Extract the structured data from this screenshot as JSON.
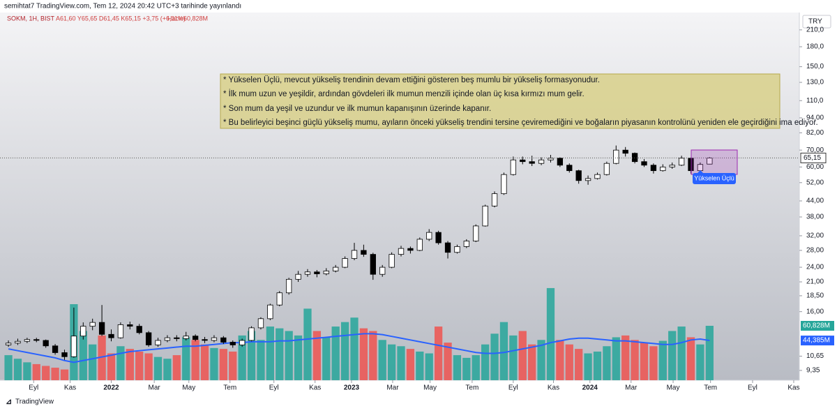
{
  "header": {
    "published": "semihtat7 TradingView.com, Tem 12, 2024 20:42 UTC+3 tarihinde yayınlandı",
    "symbol": "SOKM, 1H, BIST",
    "ohlc_text": "A61,60 Y65,65 D61,45 K65,15 +3,75 (+6,11%)",
    "volume_text": "Hacim",
    "currency": "TRY"
  },
  "footer": {
    "brand": "TradingView"
  },
  "annotation": {
    "lines": [
      "* Yükselen Üçlü, mevcut yükseliş trendinin devam ettiğini gösteren beş mumlu bir yükseliş formasyonudur.",
      "* İlk mum uzun ve yeşildir, ardından gövdeleri ilk mumun menzili içinde olan üç kısa kırmızı mum gelir.",
      "* Son mum da yeşil ve uzundur ve ilk mumun kapanışının üzerinde kapanır.",
      "* Bu belirleyici beşinci güçlü yükseliş mumu, ayıların önceki yükseliş trendini tersine çeviremediğini ve boğaların piyasanın kontrolünü yeniden ele geçirdiğini ima ediyor."
    ],
    "pattern_label": "Yükselen Üçlü"
  },
  "chart_data": {
    "type": "candlestick",
    "log_scale": true,
    "grid": false,
    "ylim": [
      8.55,
      246
    ],
    "xlim": [
      -0.9,
      84.6
    ],
    "y2lim": [
      0,
      411
    ],
    "up_color": "#ffffff",
    "down_color": "#000000",
    "yticks": [
      {
        "value": 9.35,
        "label": "9,35"
      },
      {
        "value": 10.65,
        "label": "10,65"
      },
      {
        "value": 16,
        "label": "16,00"
      },
      {
        "value": 18.5,
        "label": "18,50"
      },
      {
        "value": 21,
        "label": "21,00"
      },
      {
        "value": 24,
        "label": "24,00"
      },
      {
        "value": 28,
        "label": "28,00"
      },
      {
        "value": 32,
        "label": "32,00"
      },
      {
        "value": 38,
        "label": "38,00"
      },
      {
        "value": 44,
        "label": "44,00"
      },
      {
        "value": 52,
        "label": "52,00"
      },
      {
        "value": 60,
        "label": "60,00"
      },
      {
        "value": 70,
        "label": "70,00"
      },
      {
        "value": 82,
        "label": "82,00"
      },
      {
        "value": 94,
        "label": "94,00"
      },
      {
        "value": 110,
        "label": "110,0"
      },
      {
        "value": 130,
        "label": "130,0"
      },
      {
        "value": 150,
        "label": "150,0"
      },
      {
        "value": 180,
        "label": "180,0"
      },
      {
        "value": 210,
        "label": "210,0"
      }
    ],
    "xticks": [
      {
        "value": 2.7,
        "label": "Eyl"
      },
      {
        "value": 6.6,
        "label": "Kas"
      },
      {
        "value": 11.0,
        "label": "2022"
      },
      {
        "value": 15.6,
        "label": "Mar"
      },
      {
        "value": 19.3,
        "label": "May"
      },
      {
        "value": 23.7,
        "label": "Tem"
      },
      {
        "value": 28.4,
        "label": "Eyl"
      },
      {
        "value": 32.8,
        "label": "Kas"
      },
      {
        "value": 36.7,
        "label": "2023"
      },
      {
        "value": 41.1,
        "label": "Mar"
      },
      {
        "value": 45.1,
        "label": "May"
      },
      {
        "value": 49.6,
        "label": "Tem"
      },
      {
        "value": 54.0,
        "label": "Eyl"
      },
      {
        "value": 58.3,
        "label": "Kas"
      },
      {
        "value": 62.2,
        "label": "2024"
      },
      {
        "value": 66.6,
        "label": "Mar"
      },
      {
        "value": 71.1,
        "label": "May"
      },
      {
        "value": 75.1,
        "label": "Tem"
      },
      {
        "value": 79.6,
        "label": "Eyl"
      },
      {
        "value": 84.0,
        "label": "Kas"
      }
    ],
    "ohlc": [
      [
        11.8,
        12.3,
        11.6,
        12.0
      ],
      [
        12.0,
        12.5,
        11.8,
        12.2
      ],
      [
        12.2,
        12.6,
        12.0,
        12.4
      ],
      [
        12.4,
        12.6,
        12.1,
        12.3
      ],
      [
        12.3,
        12.4,
        11.5,
        11.7
      ],
      [
        11.7,
        11.9,
        10.8,
        11.0
      ],
      [
        11.0,
        11.3,
        10.3,
        10.6
      ],
      [
        10.6,
        16.6,
        10.5,
        12.8
      ],
      [
        12.8,
        14.5,
        12.4,
        14.0
      ],
      [
        14.0,
        15.0,
        13.5,
        14.5
      ],
      [
        14.5,
        17.0,
        12.8,
        13.0
      ],
      [
        13.0,
        13.6,
        12.2,
        12.6
      ],
      [
        12.6,
        14.5,
        12.5,
        14.2
      ],
      [
        14.2,
        14.6,
        13.6,
        14.0
      ],
      [
        14.0,
        14.3,
        13.0,
        13.2
      ],
      [
        13.2,
        13.4,
        11.6,
        11.8
      ],
      [
        11.8,
        12.6,
        11.6,
        12.3
      ],
      [
        12.3,
        12.9,
        12.1,
        12.6
      ],
      [
        12.6,
        12.9,
        12.2,
        12.5
      ],
      [
        12.5,
        13.3,
        12.3,
        12.8
      ],
      [
        12.8,
        13.0,
        12.2,
        12.4
      ],
      [
        12.4,
        12.7,
        12.0,
        12.3
      ],
      [
        12.3,
        12.9,
        12.1,
        12.6
      ],
      [
        12.6,
        12.8,
        11.9,
        12.1
      ],
      [
        12.1,
        12.3,
        11.5,
        11.8
      ],
      [
        11.8,
        12.5,
        11.6,
        12.3
      ],
      [
        12.3,
        14.0,
        12.2,
        13.8
      ],
      [
        13.8,
        15.2,
        13.6,
        15.0
      ],
      [
        15.0,
        17.2,
        14.8,
        17.0
      ],
      [
        17.0,
        19.3,
        16.8,
        19.0
      ],
      [
        19.0,
        21.8,
        18.7,
        21.5
      ],
      [
        21.5,
        23.2,
        21.0,
        22.5
      ],
      [
        22.5,
        23.6,
        22.0,
        23.0
      ],
      [
        23.0,
        23.4,
        21.9,
        22.6
      ],
      [
        22.6,
        23.8,
        22.3,
        23.2
      ],
      [
        23.2,
        24.5,
        22.9,
        24.0
      ],
      [
        24.0,
        26.5,
        23.8,
        26.0
      ],
      [
        26.0,
        30.0,
        25.6,
        28.0
      ],
      [
        28.0,
        29.5,
        26.4,
        27.0
      ],
      [
        27.0,
        27.4,
        21.4,
        22.5
      ],
      [
        22.5,
        24.5,
        22.0,
        24.0
      ],
      [
        24.0,
        27.5,
        23.8,
        27.0
      ],
      [
        27.0,
        29.2,
        26.5,
        28.5
      ],
      [
        28.5,
        29.0,
        27.2,
        28.0
      ],
      [
        28.0,
        31.5,
        27.8,
        31.0
      ],
      [
        31.0,
        34.0,
        30.5,
        33.0
      ],
      [
        33.0,
        33.5,
        29.5,
        30.0
      ],
      [
        30.0,
        30.5,
        26.0,
        27.5
      ],
      [
        27.5,
        29.5,
        27.2,
        29.0
      ],
      [
        29.0,
        31.0,
        28.6,
        30.5
      ],
      [
        30.5,
        35.5,
        30.2,
        35.0
      ],
      [
        35.0,
        42.5,
        34.8,
        42.0
      ],
      [
        42.0,
        48.0,
        41.5,
        47.0
      ],
      [
        47.0,
        57.0,
        46.5,
        56.0
      ],
      [
        56.0,
        66.0,
        55.5,
        64.0
      ],
      [
        64.0,
        66.0,
        61.5,
        63.0
      ],
      [
        63.0,
        66.5,
        60.5,
        62.0
      ],
      [
        62.0,
        65.5,
        61.0,
        64.0
      ],
      [
        64.0,
        67.0,
        62.5,
        65.0
      ],
      [
        65.0,
        65.5,
        60.0,
        61.0
      ],
      [
        61.0,
        62.0,
        57.0,
        58.0
      ],
      [
        58.0,
        58.5,
        51.5,
        53.0
      ],
      [
        53.0,
        55.5,
        51.0,
        54.0
      ],
      [
        54.0,
        57.0,
        53.5,
        56.0
      ],
      [
        56.0,
        63.0,
        55.5,
        62.0
      ],
      [
        62.0,
        73.0,
        61.5,
        70.0
      ],
      [
        70.0,
        72.0,
        66.0,
        68.0
      ],
      [
        68.0,
        68.5,
        62.0,
        63.0
      ],
      [
        63.0,
        64.5,
        60.0,
        61.0
      ],
      [
        61.0,
        62.0,
        56.5,
        58.0
      ],
      [
        58.0,
        61.5,
        57.5,
        60.0
      ],
      [
        60.0,
        62.5,
        59.0,
        61.0
      ],
      [
        61.0,
        66.5,
        60.5,
        65.0
      ],
      [
        65.0,
        65.5,
        56.5,
        58.0
      ],
      [
        58.0,
        62.5,
        57.5,
        61.4
      ],
      [
        61.6,
        65.65,
        61.45,
        65.15
      ]
    ],
    "last_price_label": "65,15",
    "volume": {
      "name": "Hacim",
      "axis": "y2",
      "up_color": "#26a69a",
      "down_color": "#ef5350",
      "last_label": "60,828M",
      "values": [
        28,
        24,
        20,
        18,
        16,
        14,
        12,
        85,
        55,
        40,
        50,
        30,
        38,
        35,
        32,
        30,
        26,
        24,
        28,
        48,
        45,
        40,
        36,
        35,
        32,
        50,
        55,
        45,
        60,
        58,
        55,
        50,
        80,
        55,
        48,
        60,
        65,
        70,
        58,
        55,
        45,
        40,
        38,
        35,
        32,
        30,
        60,
        42,
        28,
        25,
        28,
        40,
        52,
        65,
        50,
        55,
        40,
        45,
        103,
        45,
        40,
        35,
        30,
        32,
        38,
        48,
        50,
        45,
        42,
        38,
        44,
        55,
        60,
        48,
        40,
        60.828
      ]
    },
    "volume_ma": {
      "axis": "y2",
      "color": "#2962ff",
      "last_label": "44,385M",
      "values": [
        35,
        33,
        31,
        29,
        27,
        25,
        22,
        20,
        22,
        24,
        26,
        28,
        30,
        32,
        33,
        34,
        35,
        36,
        37,
        38,
        38,
        39,
        40,
        41,
        42,
        42,
        43,
        43,
        43,
        44,
        44,
        45,
        46,
        47,
        48,
        49,
        50,
        51,
        52,
        52,
        51,
        49,
        47,
        45,
        43,
        41,
        39,
        37,
        35,
        33,
        31,
        30,
        30,
        31,
        33,
        35,
        37,
        39,
        42,
        44,
        46,
        47,
        47,
        46,
        45,
        44,
        44,
        43,
        42,
        41,
        40,
        40,
        42,
        45,
        46,
        44.385
      ]
    }
  }
}
